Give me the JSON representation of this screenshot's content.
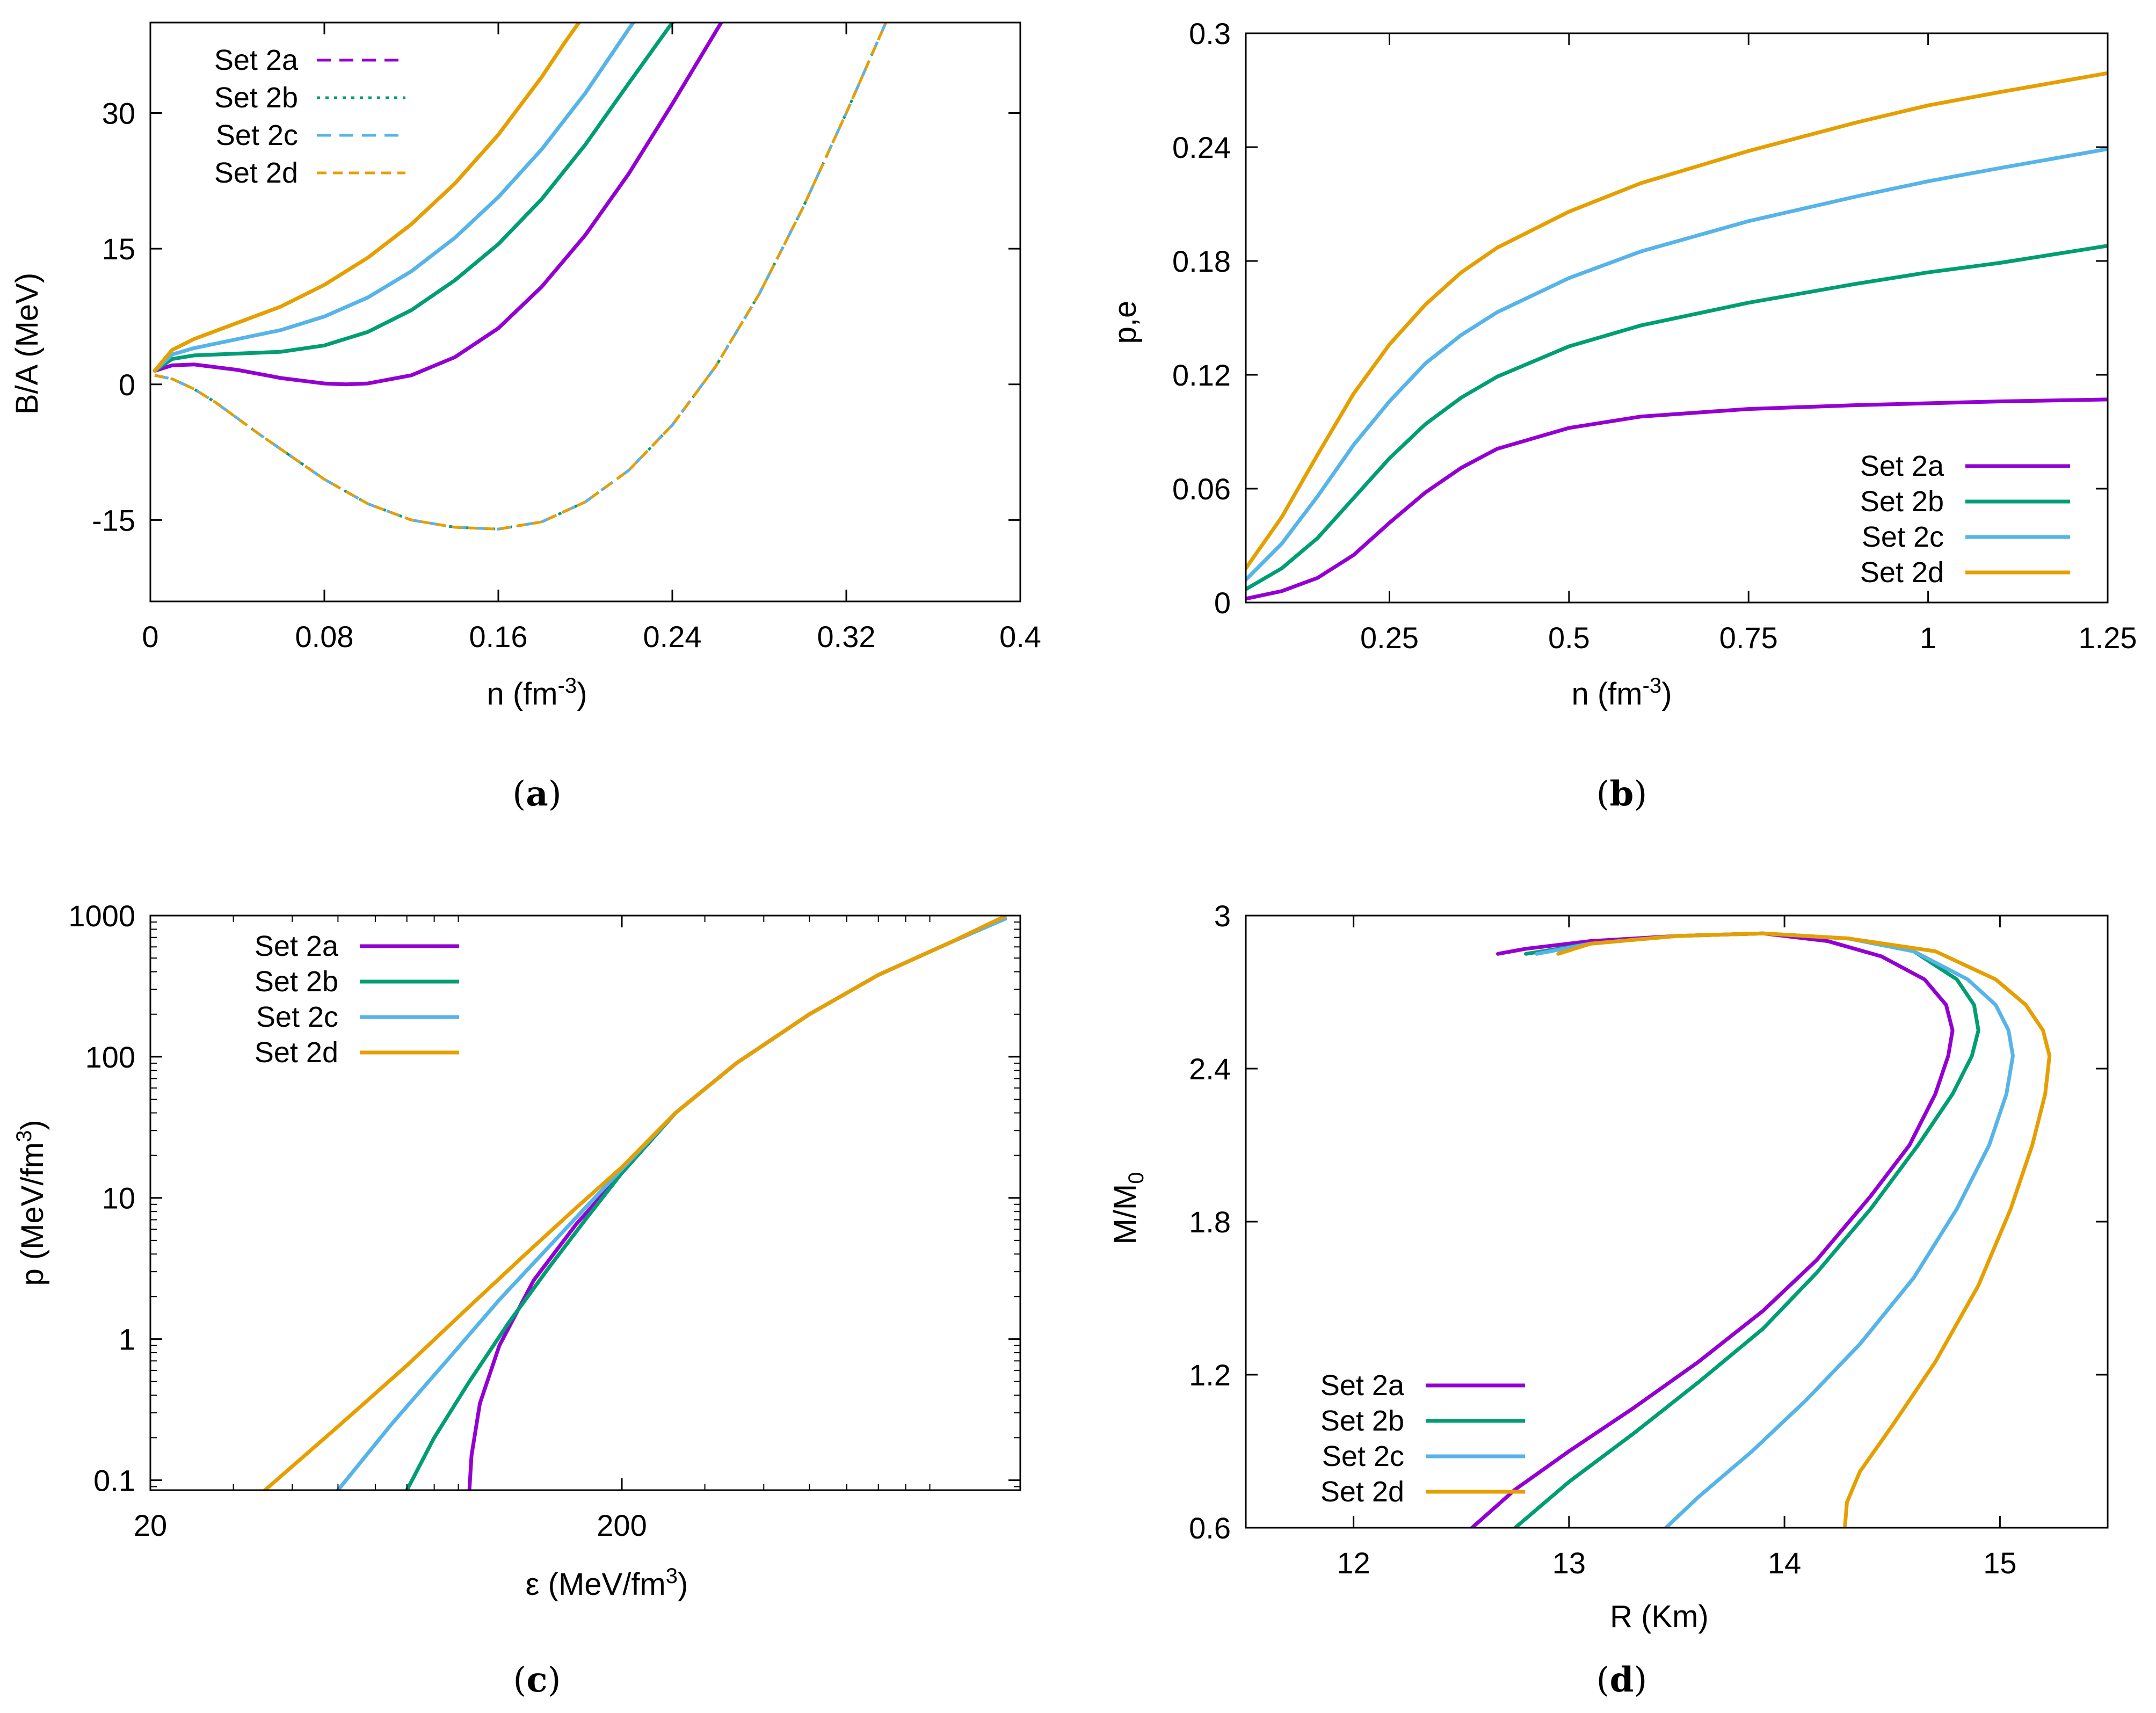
{
  "colors": {
    "Set 2a": "#9400d3",
    "Set 2b": "#009e73",
    "Set 2c": "#56b4e9",
    "Set 2d": "#e69f00"
  },
  "chart_data": [
    {
      "id": "a",
      "type": "line",
      "caption_letter": "a",
      "xlabel_main": "n  (fm",
      "xlabel_sup": "-3",
      "xlabel_end": ")",
      "ylabel": "B/A  (MeV)",
      "xlim": [
        0,
        0.4
      ],
      "ylim": [
        -24,
        40
      ],
      "xticks": [
        "0",
        "0.08",
        "0.16",
        "0.24",
        "0.32",
        "0.4"
      ],
      "xtick_values": [
        0,
        0.08,
        0.16,
        0.24,
        0.32,
        0.4
      ],
      "yticks": [
        "-15",
        "0",
        "15",
        "30"
      ],
      "ytick_values": [
        -15,
        0,
        15,
        30
      ],
      "legend_position": "top-left",
      "legend": [
        "Set 2a",
        "Set 2b",
        "Set 2c",
        "Set 2d"
      ],
      "series": [
        {
          "name": "Set 2a",
          "style": "dashed",
          "x": [
            0.002,
            0.01,
            0.02,
            0.03,
            0.05,
            0.08,
            0.1,
            0.12,
            0.14,
            0.16,
            0.18,
            0.2,
            0.22,
            0.24,
            0.26,
            0.28,
            0.3,
            0.32,
            0.33,
            0.34
          ],
          "y": [
            1.0,
            0.6,
            -0.5,
            -2.0,
            -5.5,
            -10.5,
            -13.2,
            -15.0,
            -15.8,
            -16.0,
            -15.2,
            -13.0,
            -9.5,
            -4.5,
            2.0,
            10.0,
            19.5,
            30.0,
            35.5,
            41.0
          ]
        },
        {
          "name": "Set 2b",
          "style": "dotted",
          "x": [
            0.002,
            0.01,
            0.02,
            0.03,
            0.05,
            0.08,
            0.1,
            0.12,
            0.14,
            0.16,
            0.18,
            0.2,
            0.22,
            0.24,
            0.26,
            0.28,
            0.3,
            0.32,
            0.33,
            0.34
          ],
          "y": [
            1.0,
            0.6,
            -0.5,
            -2.0,
            -5.5,
            -10.5,
            -13.2,
            -15.0,
            -15.8,
            -16.0,
            -15.2,
            -13.0,
            -9.5,
            -4.5,
            2.0,
            10.0,
            19.5,
            30.0,
            35.5,
            41.0
          ]
        },
        {
          "name": "Set 2c",
          "style": "dashed",
          "x": [
            0.002,
            0.01,
            0.02,
            0.03,
            0.05,
            0.08,
            0.1,
            0.12,
            0.14,
            0.16,
            0.18,
            0.2,
            0.22,
            0.24,
            0.26,
            0.28,
            0.3,
            0.32,
            0.33,
            0.34
          ],
          "y": [
            1.0,
            0.6,
            -0.5,
            -2.0,
            -5.5,
            -10.5,
            -13.2,
            -15.0,
            -15.8,
            -16.0,
            -15.2,
            -13.0,
            -9.5,
            -4.5,
            2.0,
            10.0,
            19.5,
            30.0,
            35.5,
            41.0
          ]
        },
        {
          "name": "Set 2d",
          "style": "dashed-fine",
          "x": [
            0.002,
            0.01,
            0.02,
            0.03,
            0.05,
            0.08,
            0.1,
            0.12,
            0.14,
            0.16,
            0.18,
            0.2,
            0.22,
            0.24,
            0.26,
            0.28,
            0.3,
            0.32,
            0.33,
            0.34
          ],
          "y": [
            1.0,
            0.6,
            -0.5,
            -2.0,
            -5.5,
            -10.5,
            -13.2,
            -15.0,
            -15.8,
            -16.0,
            -15.2,
            -13.0,
            -9.5,
            -4.5,
            2.0,
            10.0,
            19.5,
            30.0,
            35.5,
            41.0
          ]
        },
        {
          "name": "Set 2a",
          "style": "solid",
          "legend": false,
          "x": [
            0.002,
            0.01,
            0.02,
            0.04,
            0.06,
            0.08,
            0.09,
            0.1,
            0.12,
            0.14,
            0.16,
            0.18,
            0.2,
            0.22,
            0.24,
            0.26,
            0.265
          ],
          "y": [
            1.5,
            2.1,
            2.2,
            1.6,
            0.7,
            0.1,
            0.0,
            0.1,
            1.0,
            3.0,
            6.2,
            10.8,
            16.5,
            23.3,
            31.0,
            39.0,
            41.0
          ]
        },
        {
          "name": "Set 2b",
          "style": "solid",
          "legend": false,
          "x": [
            0.002,
            0.01,
            0.02,
            0.04,
            0.06,
            0.08,
            0.1,
            0.12,
            0.14,
            0.16,
            0.18,
            0.2,
            0.22,
            0.24,
            0.245
          ],
          "y": [
            1.5,
            2.8,
            3.2,
            3.4,
            3.6,
            4.3,
            5.8,
            8.2,
            11.5,
            15.5,
            20.5,
            26.5,
            33.3,
            40.0,
            41.0
          ]
        },
        {
          "name": "Set 2c",
          "style": "solid",
          "legend": false,
          "x": [
            0.002,
            0.01,
            0.02,
            0.04,
            0.06,
            0.08,
            0.1,
            0.12,
            0.14,
            0.16,
            0.18,
            0.2,
            0.22,
            0.225
          ],
          "y": [
            1.5,
            3.3,
            4.0,
            5.0,
            6.0,
            7.5,
            9.6,
            12.5,
            16.2,
            20.7,
            26.0,
            32.2,
            39.3,
            41.0
          ]
        },
        {
          "name": "Set 2d",
          "style": "solid",
          "legend": false,
          "x": [
            0.002,
            0.01,
            0.02,
            0.04,
            0.06,
            0.08,
            0.1,
            0.12,
            0.14,
            0.16,
            0.18,
            0.19,
            0.2
          ],
          "y": [
            1.5,
            3.8,
            5.0,
            6.8,
            8.6,
            11.0,
            14.0,
            17.7,
            22.2,
            27.6,
            34.0,
            37.6,
            41.0
          ]
        }
      ]
    },
    {
      "id": "b",
      "type": "line",
      "caption_letter": "b",
      "xlabel_main": "n  (fm",
      "xlabel_sup": "-3",
      "xlabel_end": ")",
      "ylabel": "p,e",
      "xlim": [
        0.05,
        1.25
      ],
      "ylim": [
        0,
        0.3
      ],
      "xticks": [
        "0.25",
        "0.5",
        "0.75",
        "1",
        "1.25"
      ],
      "xtick_values": [
        0.25,
        0.5,
        0.75,
        1.0,
        1.25
      ],
      "yticks": [
        "0",
        "0.06",
        "0.12",
        "0.18",
        "0.24",
        "0.3"
      ],
      "ytick_values": [
        0,
        0.06,
        0.12,
        0.18,
        0.24,
        0.3
      ],
      "legend_position": "bottom-right",
      "legend": [
        "Set 2a",
        "Set 2b",
        "Set 2c",
        "Set 2d"
      ],
      "series": [
        {
          "name": "Set 2a",
          "style": "solid",
          "x": [
            0.05,
            0.1,
            0.15,
            0.2,
            0.25,
            0.3,
            0.35,
            0.4,
            0.5,
            0.6,
            0.75,
            0.9,
            1.0,
            1.1,
            1.25
          ],
          "y": [
            0.002,
            0.006,
            0.013,
            0.025,
            0.042,
            0.058,
            0.071,
            0.081,
            0.092,
            0.098,
            0.102,
            0.104,
            0.105,
            0.106,
            0.107
          ]
        },
        {
          "name": "Set 2b",
          "style": "solid",
          "x": [
            0.05,
            0.1,
            0.15,
            0.2,
            0.25,
            0.3,
            0.35,
            0.4,
            0.5,
            0.6,
            0.75,
            0.9,
            1.0,
            1.1,
            1.25
          ],
          "y": [
            0.007,
            0.018,
            0.034,
            0.055,
            0.076,
            0.094,
            0.108,
            0.119,
            0.135,
            0.146,
            0.158,
            0.168,
            0.174,
            0.179,
            0.188
          ]
        },
        {
          "name": "Set 2c",
          "style": "solid",
          "x": [
            0.05,
            0.1,
            0.15,
            0.2,
            0.25,
            0.3,
            0.35,
            0.4,
            0.5,
            0.6,
            0.75,
            0.9,
            1.0,
            1.1,
            1.25
          ],
          "y": [
            0.012,
            0.031,
            0.056,
            0.083,
            0.106,
            0.126,
            0.141,
            0.153,
            0.171,
            0.185,
            0.201,
            0.214,
            0.222,
            0.229,
            0.239
          ]
        },
        {
          "name": "Set 2d",
          "style": "solid",
          "x": [
            0.05,
            0.1,
            0.15,
            0.2,
            0.25,
            0.3,
            0.35,
            0.4,
            0.5,
            0.6,
            0.75,
            0.9,
            1.0,
            1.1,
            1.25
          ],
          "y": [
            0.018,
            0.045,
            0.078,
            0.11,
            0.136,
            0.157,
            0.174,
            0.187,
            0.206,
            0.221,
            0.238,
            0.253,
            0.262,
            0.269,
            0.279
          ]
        }
      ]
    },
    {
      "id": "c",
      "type": "line",
      "caption_letter": "c",
      "xlabel_main": "ε  (MeV/fm",
      "xlabel_sup": "3",
      "xlabel_end": ")",
      "ylabel_main": "p  (MeV/fm",
      "ylabel_sup": "3",
      "ylabel_end": ")",
      "xscale": "log",
      "yscale": "log",
      "xlim": [
        20,
        1400
      ],
      "ylim": [
        0.085,
        1000
      ],
      "xticks": [
        "20",
        "200"
      ],
      "xtick_values": [
        20,
        200
      ],
      "yticks": [
        "0.1",
        "1",
        "10",
        "100",
        "1000"
      ],
      "ytick_values": [
        0.1,
        1,
        10,
        100,
        1000
      ],
      "legend_position": "top-left",
      "legend": [
        "Set 2a",
        "Set 2b",
        "Set 2c",
        "Set 2d"
      ],
      "series": [
        {
          "name": "Set 2a",
          "style": "solid",
          "x": [
            95,
            96,
            100,
            110,
            130,
            160,
            200,
            260,
            350,
            500,
            700,
            1000,
            1300
          ],
          "y": [
            0.085,
            0.15,
            0.35,
            0.9,
            2.6,
            6.5,
            15,
            40,
            90,
            200,
            380,
            650,
            950
          ]
        },
        {
          "name": "Set 2b",
          "style": "solid",
          "x": [
            70,
            80,
            95,
            115,
            140,
            170,
            200,
            260,
            350,
            500,
            700,
            1000,
            1300
          ],
          "y": [
            0.085,
            0.2,
            0.5,
            1.3,
            3.2,
            7.5,
            15,
            40,
            90,
            200,
            380,
            650,
            950
          ]
        },
        {
          "name": "Set 2c",
          "style": "solid",
          "x": [
            50,
            65,
            85,
            110,
            140,
            170,
            200,
            260,
            350,
            500,
            700,
            1000,
            1300
          ],
          "y": [
            0.085,
            0.25,
            0.7,
            1.9,
            4.5,
            9,
            16,
            40,
            90,
            200,
            380,
            650,
            950
          ]
        },
        {
          "name": "Set 2d",
          "style": "solid",
          "x": [
            35,
            50,
            70,
            95,
            125,
            160,
            200,
            260,
            350,
            500,
            700,
            1000,
            1300
          ],
          "y": [
            0.085,
            0.24,
            0.65,
            1.7,
            4.0,
            8.5,
            16.5,
            40,
            90,
            200,
            380,
            650,
            990
          ]
        }
      ]
    },
    {
      "id": "d",
      "type": "line",
      "caption_letter": "d",
      "xlabel_main": "R  (Km)",
      "xlabel_sup": "",
      "xlabel_end": "",
      "ylabel_main": "M/M",
      "ylabel_sub": "0",
      "xlim": [
        11.5,
        15.5
      ],
      "ylim": [
        0.6,
        3.0
      ],
      "xticks": [
        "12",
        "13",
        "14",
        "15"
      ],
      "xtick_values": [
        12,
        13,
        14,
        15
      ],
      "yticks": [
        "0.6",
        "1.2",
        "1.8",
        "2.4",
        "3"
      ],
      "ytick_values": [
        0.6,
        1.2,
        1.8,
        2.4,
        3.0
      ],
      "legend_position": "bottom-left",
      "legend": [
        "Set 2a",
        "Set 2b",
        "Set 2c",
        "Set 2d"
      ],
      "series": [
        {
          "name": "Set 2a",
          "style": "solid",
          "x": [
            12.55,
            12.75,
            13.0,
            13.3,
            13.6,
            13.9,
            14.15,
            14.4,
            14.58,
            14.7,
            14.76,
            14.78,
            14.75,
            14.65,
            14.45,
            14.2,
            13.9,
            13.5,
            13.1,
            12.8,
            12.67
          ],
          "y": [
            0.6,
            0.75,
            0.9,
            1.07,
            1.25,
            1.45,
            1.65,
            1.9,
            2.1,
            2.3,
            2.45,
            2.55,
            2.65,
            2.75,
            2.84,
            2.9,
            2.93,
            2.92,
            2.9,
            2.87,
            2.85
          ]
        },
        {
          "name": "Set 2b",
          "style": "solid",
          "x": [
            12.75,
            13.0,
            13.3,
            13.6,
            13.9,
            14.15,
            14.4,
            14.62,
            14.78,
            14.87,
            14.9,
            14.88,
            14.8,
            14.6,
            14.3,
            13.9,
            13.5,
            13.1,
            12.8
          ],
          "y": [
            0.6,
            0.78,
            0.97,
            1.17,
            1.38,
            1.6,
            1.85,
            2.1,
            2.3,
            2.45,
            2.55,
            2.65,
            2.75,
            2.86,
            2.91,
            2.93,
            2.92,
            2.89,
            2.85
          ]
        },
        {
          "name": "Set 2c",
          "style": "solid",
          "x": [
            13.45,
            13.6,
            13.85,
            14.1,
            14.35,
            14.6,
            14.8,
            14.95,
            15.03,
            15.06,
            15.04,
            14.98,
            14.85,
            14.6,
            14.3,
            13.9,
            13.5,
            13.1,
            12.85
          ],
          "y": [
            0.6,
            0.72,
            0.9,
            1.1,
            1.32,
            1.58,
            1.85,
            2.1,
            2.3,
            2.45,
            2.55,
            2.65,
            2.75,
            2.86,
            2.91,
            2.93,
            2.92,
            2.89,
            2.85
          ]
        },
        {
          "name": "Set 2d",
          "style": "solid",
          "x": [
            14.28,
            14.29,
            14.35,
            14.5,
            14.7,
            14.9,
            15.05,
            15.15,
            15.21,
            15.23,
            15.2,
            15.12,
            14.98,
            14.7,
            14.3,
            13.9,
            13.5,
            13.1,
            12.95
          ],
          "y": [
            0.6,
            0.7,
            0.82,
            1.0,
            1.25,
            1.55,
            1.85,
            2.1,
            2.3,
            2.45,
            2.55,
            2.65,
            2.75,
            2.86,
            2.91,
            2.93,
            2.92,
            2.89,
            2.85
          ]
        }
      ]
    }
  ]
}
